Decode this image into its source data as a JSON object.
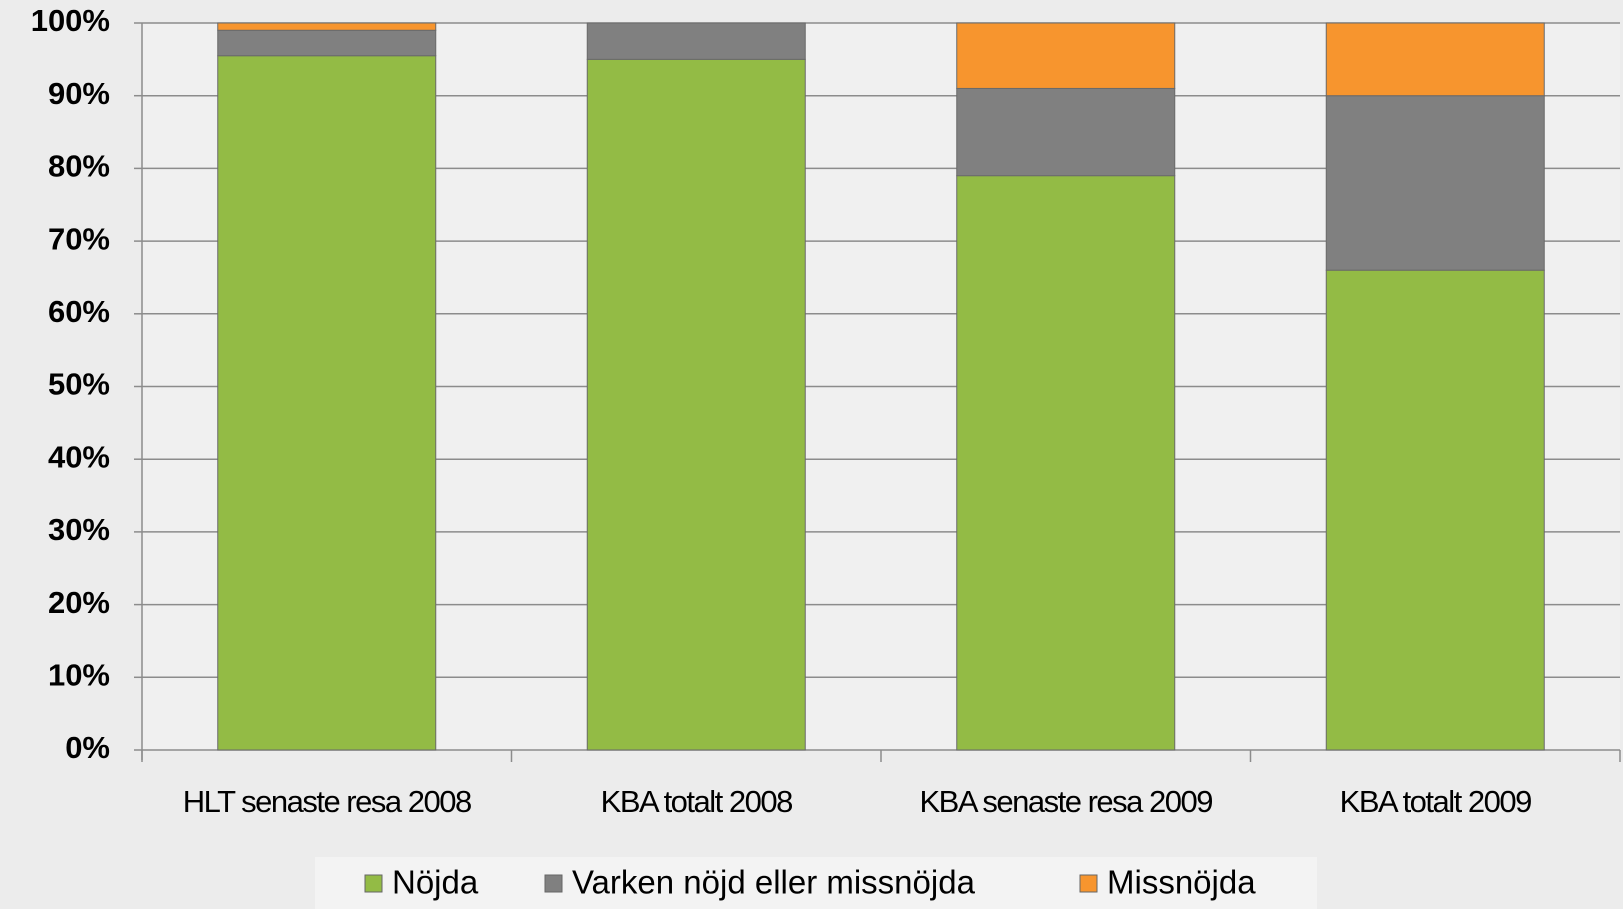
{
  "chart_data": {
    "type": "stacked_bar",
    "categories": [
      "HLT senaste resa 2008",
      "KBA totalt 2008",
      "KBA senaste resa 2009",
      "KBA totalt 2009"
    ],
    "series": [
      {
        "name": "Nöjda",
        "color": "#93bb45",
        "values": [
          95.5,
          95,
          79,
          66
        ]
      },
      {
        "name": "Varken nöjd eller missnöjda",
        "color": "#808080",
        "values": [
          3.5,
          5,
          12,
          24
        ]
      },
      {
        "name": "Missnöjda",
        "color": "#f7952e",
        "values": [
          1,
          0,
          9,
          10
        ]
      }
    ],
    "ylim": [
      0,
      100
    ],
    "yticks": [
      {
        "value": 0,
        "label": "0%"
      },
      {
        "value": 10,
        "label": "10%"
      },
      {
        "value": 20,
        "label": "20%"
      },
      {
        "value": 30,
        "label": "30%"
      },
      {
        "value": 40,
        "label": "40%"
      },
      {
        "value": 50,
        "label": "50%"
      },
      {
        "value": 60,
        "label": "60%"
      },
      {
        "value": 70,
        "label": "70%"
      },
      {
        "value": 80,
        "label": "80%"
      },
      {
        "value": 90,
        "label": "90%"
      },
      {
        "value": 100,
        "label": "100%"
      }
    ],
    "grid": true,
    "legend": "bottom"
  }
}
